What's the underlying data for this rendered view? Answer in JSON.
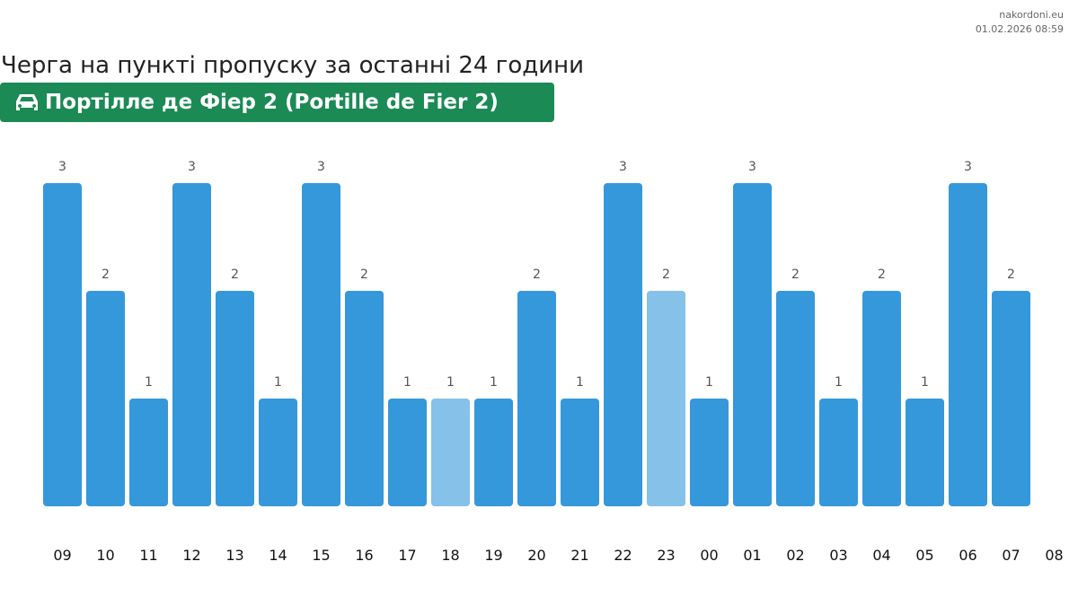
{
  "source": {
    "site": "nakordoni.eu",
    "timestamp": "01.02.2026 08:59"
  },
  "header": {
    "title": "Черга на пункті пропуску за останні 24 години",
    "checkpoint": "Портілле де Фіер 2 (Portille de Fier 2)",
    "icon": "car-icon"
  },
  "colors": {
    "bar": "#3498db",
    "bar_highlight": "#85c1e9",
    "badge": "#1b8a55"
  },
  "chart_data": {
    "type": "bar",
    "title": "Черга на пункті пропуску за останні 24 години",
    "categories": [
      "09",
      "10",
      "11",
      "12",
      "13",
      "14",
      "15",
      "16",
      "17",
      "18",
      "19",
      "20",
      "21",
      "22",
      "23",
      "00",
      "01",
      "02",
      "03",
      "04",
      "05",
      "06",
      "07"
    ],
    "values": [
      3,
      2,
      1,
      3,
      2,
      1,
      3,
      2,
      1,
      1,
      1,
      2,
      1,
      3,
      2,
      1,
      3,
      2,
      1,
      2,
      1,
      3,
      2
    ],
    "highlighted": [
      "18",
      "23"
    ],
    "x_tick_labels": [
      "09",
      "10",
      "11",
      "12",
      "13",
      "14",
      "15",
      "16",
      "17",
      "18",
      "19",
      "20",
      "21",
      "22",
      "23",
      "00",
      "01",
      "02",
      "03",
      "04",
      "05",
      "06",
      "07",
      "08"
    ],
    "ylim": [
      0,
      3
    ],
    "grid": false,
    "xlabel": "",
    "ylabel": ""
  }
}
